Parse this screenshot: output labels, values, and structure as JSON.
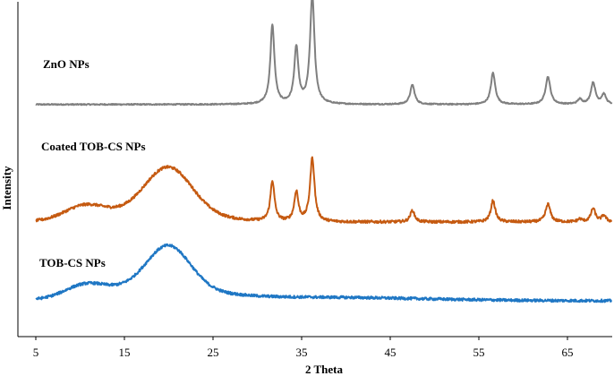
{
  "chart_data": {
    "type": "line",
    "title": "",
    "xlabel": "2 Theta",
    "ylabel": "Intensity",
    "xlim": [
      5,
      70
    ],
    "xticks": [
      5,
      15,
      25,
      35,
      45,
      55,
      65
    ],
    "y_ticks_shown": false,
    "grid": false,
    "legend": "none (series labeled inline)",
    "series": [
      {
        "name": "ZnO NPs",
        "color": "#7f7f7f",
        "baseline": 0.03,
        "peaks": [
          [
            31.7,
            0.8,
            0.28
          ],
          [
            34.4,
            0.57,
            0.28
          ],
          [
            36.2,
            1.1,
            0.3
          ],
          [
            47.5,
            0.2,
            0.3
          ],
          [
            56.6,
            0.32,
            0.3
          ],
          [
            62.8,
            0.28,
            0.32
          ],
          [
            66.4,
            0.05,
            0.3
          ],
          [
            67.9,
            0.22,
            0.3
          ],
          [
            69.1,
            0.1,
            0.3
          ]
        ]
      },
      {
        "name": "Coated TOB-CS NPs",
        "color": "#c55a11",
        "peaks": [
          [
            31.7,
            0.45,
            0.28
          ],
          [
            34.4,
            0.33,
            0.28
          ],
          [
            36.2,
            0.71,
            0.3
          ],
          [
            47.5,
            0.13,
            0.3
          ],
          [
            56.6,
            0.24,
            0.3
          ],
          [
            62.8,
            0.2,
            0.32
          ],
          [
            66.4,
            0.03,
            0.3
          ],
          [
            67.9,
            0.15,
            0.3
          ],
          [
            69.1,
            0.07,
            0.3
          ]
        ],
        "amorphous": [
          [
            10.5,
            0.14,
            2.2
          ],
          [
            20.0,
            0.5,
            2.6
          ],
          [
            18.0,
            0.12,
            6.0
          ]
        ]
      },
      {
        "name": "TOB-CS NPs",
        "color": "#1f77c4",
        "amorphous": [
          [
            10.5,
            0.12,
            2.2
          ],
          [
            20.0,
            0.46,
            2.4
          ],
          [
            18.0,
            0.15,
            6.0
          ],
          [
            36.0,
            0.04,
            12.0
          ]
        ]
      }
    ]
  }
}
